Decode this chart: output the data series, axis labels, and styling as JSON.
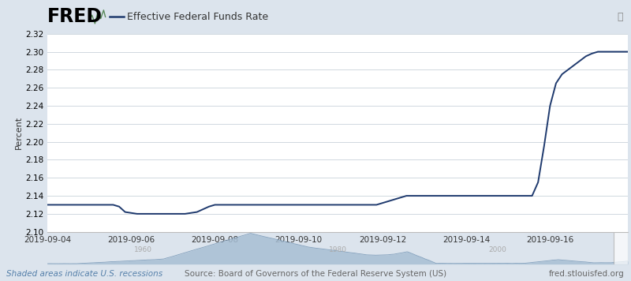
{
  "title": "Effective Federal Funds Rate",
  "ylabel": "Percent",
  "bg_color": "#dce4ed",
  "plot_bg_color": "#ffffff",
  "line_color": "#1f3a6e",
  "line_width": 1.4,
  "ylim": [
    2.1,
    2.32
  ],
  "yticks": [
    2.1,
    2.12,
    2.14,
    2.16,
    2.18,
    2.2,
    2.22,
    2.24,
    2.26,
    2.28,
    2.3,
    2.32
  ],
  "xtick_labels": [
    "2019-09-04",
    "2019-09-06",
    "2019-09-08",
    "2019-09-10",
    "2019-09-12",
    "2019-09-14",
    "2019-09-16"
  ],
  "xtick_positions": [
    0,
    14,
    28,
    42,
    56,
    70,
    84
  ],
  "footer_left": "Shaded areas indicate U.S. recessions",
  "footer_center": "Source: Board of Governors of the Federal Reserve System (US)",
  "footer_right": "fred.stlouisfed.org",
  "legend_label": "Effective Federal Funds Rate",
  "minimap_fill_color": "#a8bfd4",
  "minimap_line_color": "#7a9ab8",
  "minimap_bg": "#dce4ed",
  "x_data": [
    0,
    1,
    2,
    3,
    4,
    5,
    6,
    7,
    8,
    9,
    10,
    11,
    12,
    13,
    14,
    15,
    16,
    17,
    18,
    19,
    20,
    21,
    22,
    23,
    24,
    25,
    26,
    27,
    28,
    29,
    30,
    31,
    32,
    33,
    34,
    35,
    36,
    37,
    38,
    39,
    40,
    41,
    42,
    43,
    44,
    45,
    46,
    47,
    48,
    49,
    50,
    51,
    52,
    53,
    54,
    55,
    56,
    57,
    58,
    59,
    60,
    61,
    62,
    63,
    64,
    65,
    66,
    67,
    68,
    69,
    70,
    71,
    72,
    73,
    74,
    75,
    76,
    77,
    78,
    79,
    80,
    81,
    82,
    83,
    84,
    85,
    86,
    87,
    88,
    89,
    90,
    91,
    92,
    93,
    94,
    95,
    96,
    97
  ],
  "y_data": [
    2.13,
    2.13,
    2.13,
    2.13,
    2.13,
    2.13,
    2.13,
    2.13,
    2.13,
    2.13,
    2.13,
    2.13,
    2.128,
    2.122,
    2.121,
    2.12,
    2.12,
    2.12,
    2.12,
    2.12,
    2.12,
    2.12,
    2.12,
    2.12,
    2.121,
    2.122,
    2.125,
    2.128,
    2.13,
    2.13,
    2.13,
    2.13,
    2.13,
    2.13,
    2.13,
    2.13,
    2.13,
    2.13,
    2.13,
    2.13,
    2.13,
    2.13,
    2.13,
    2.13,
    2.13,
    2.13,
    2.13,
    2.13,
    2.13,
    2.13,
    2.13,
    2.13,
    2.13,
    2.13,
    2.13,
    2.13,
    2.132,
    2.134,
    2.136,
    2.138,
    2.14,
    2.14,
    2.14,
    2.14,
    2.14,
    2.14,
    2.14,
    2.14,
    2.14,
    2.14,
    2.14,
    2.14,
    2.14,
    2.14,
    2.14,
    2.14,
    2.14,
    2.14,
    2.14,
    2.14,
    2.14,
    2.14,
    2.155,
    2.195,
    2.24,
    2.265,
    2.275,
    2.28,
    2.285,
    2.29,
    2.295,
    2.298,
    2.3,
    2.3,
    2.3,
    2.3,
    2.3,
    2.3
  ]
}
